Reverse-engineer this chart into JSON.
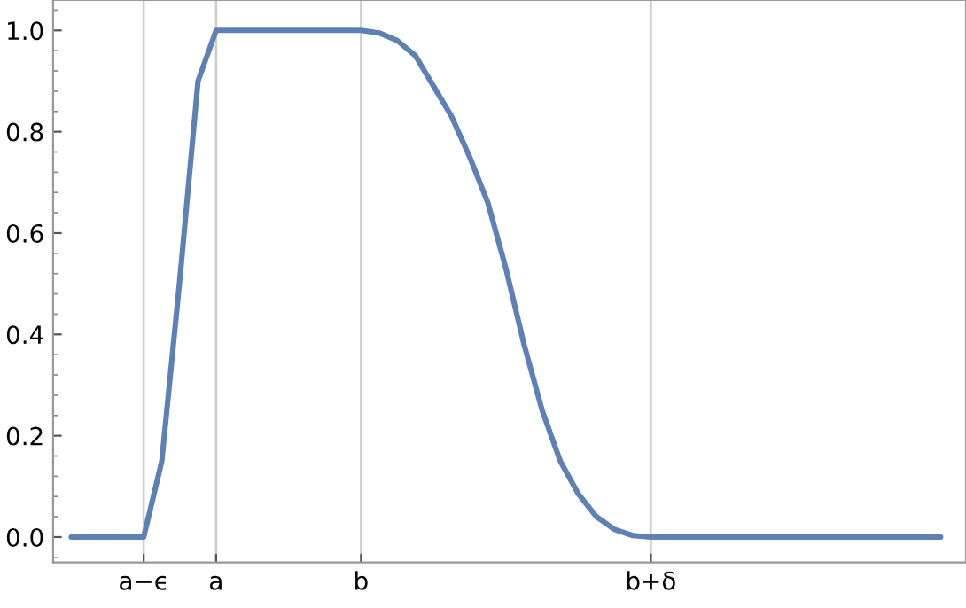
{
  "chart_data": {
    "type": "line",
    "categories": [
      null,
      null,
      null,
      null,
      "a−ϵ",
      null,
      null,
      null,
      "a",
      null,
      null,
      null,
      null,
      null,
      null,
      null,
      "b",
      null,
      null,
      null,
      null,
      null,
      null,
      null,
      null,
      null,
      null,
      null,
      null,
      null,
      null,
      null,
      "b+δ",
      null,
      null,
      null,
      null,
      null,
      null,
      null,
      null,
      null,
      null,
      null,
      null,
      null,
      null,
      null,
      null
    ],
    "series": [
      {
        "color": "#5e81b5",
        "values": [
          0,
          0,
          0,
          0,
          0,
          0.15,
          0.51,
          0.9,
          1,
          1,
          1,
          1,
          1,
          1,
          1,
          1,
          1,
          0.995,
          0.98,
          0.95,
          0.89,
          0.83,
          0.75,
          0.66,
          0.53,
          0.38,
          0.25,
          0.15,
          0.085,
          0.04,
          0.015,
          0.003,
          0,
          0,
          0,
          0,
          0,
          0,
          0,
          0,
          0,
          0,
          0,
          0,
          0,
          0,
          0,
          0,
          0
        ]
      }
    ],
    "ylim": [
      -0.05,
      1.06
    ],
    "yticks": [
      {
        "value": 0,
        "label": "0.0"
      },
      {
        "value": 0.2,
        "label": "0.2"
      },
      {
        "value": 0.4,
        "label": "0.4"
      },
      {
        "value": 0.6,
        "label": "0.6"
      },
      {
        "value": 0.8,
        "label": "0.8"
      },
      {
        "value": 1,
        "label": "1.0"
      }
    ],
    "grid": "x",
    "marker": "none",
    "line_style": "solid"
  }
}
